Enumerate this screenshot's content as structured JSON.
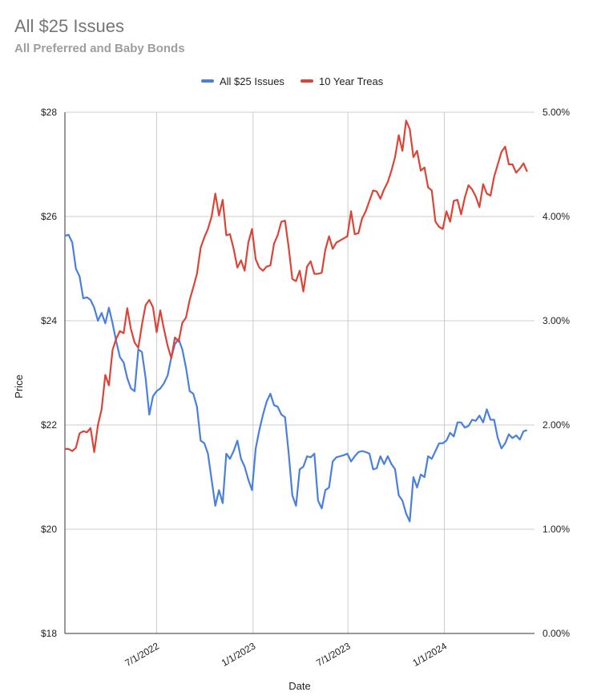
{
  "title": "All $25 Issues",
  "subtitle": "All Preferred and Baby Bonds",
  "chart_data": {
    "type": "line",
    "xlabel": "Date",
    "ylabel": "Price",
    "x_ticks": [
      "7/1/2022",
      "1/1/2023",
      "7/1/2023",
      "1/1/2024"
    ],
    "x_tick_dates": [
      "2022-07-01",
      "2023-01-01",
      "2023-07-01",
      "2024-01-01"
    ],
    "x_range": [
      "2022-01-07",
      "2024-06-21"
    ],
    "y_left": {
      "ticks": [
        "$18",
        "$20",
        "$22",
        "$24",
        "$26",
        "$28"
      ],
      "range": [
        18,
        28
      ]
    },
    "y_right": {
      "ticks": [
        "0.00%",
        "1.00%",
        "2.00%",
        "3.00%",
        "4.00%",
        "5.00%"
      ],
      "range": [
        0,
        5
      ]
    },
    "grid": true,
    "legend_position": "top",
    "series": [
      {
        "name": "All $25 Issues",
        "color": "#4a7fdc",
        "axis": "left",
        "points": [
          [
            "2022-01-07",
            25.63
          ],
          [
            "2022-01-14",
            25.65
          ],
          [
            "2022-01-21",
            25.5
          ],
          [
            "2022-01-28",
            25.0
          ],
          [
            "2022-02-04",
            24.85
          ],
          [
            "2022-02-11",
            24.43
          ],
          [
            "2022-02-18",
            24.45
          ],
          [
            "2022-02-25",
            24.4
          ],
          [
            "2022-03-04",
            24.25
          ],
          [
            "2022-03-11",
            24.0
          ],
          [
            "2022-03-18",
            24.15
          ],
          [
            "2022-03-25",
            23.95
          ],
          [
            "2022-04-01",
            24.25
          ],
          [
            "2022-04-08",
            23.95
          ],
          [
            "2022-04-15",
            23.6
          ],
          [
            "2022-04-22",
            23.3
          ],
          [
            "2022-04-29",
            23.2
          ],
          [
            "2022-05-06",
            22.9
          ],
          [
            "2022-05-13",
            22.7
          ],
          [
            "2022-05-20",
            22.65
          ],
          [
            "2022-05-27",
            23.45
          ],
          [
            "2022-06-03",
            23.4
          ],
          [
            "2022-06-10",
            22.9
          ],
          [
            "2022-06-17",
            22.2
          ],
          [
            "2022-06-24",
            22.55
          ],
          [
            "2022-07-01",
            22.65
          ],
          [
            "2022-07-08",
            22.7
          ],
          [
            "2022-07-15",
            22.8
          ],
          [
            "2022-07-22",
            22.95
          ],
          [
            "2022-07-29",
            23.3
          ],
          [
            "2022-08-05",
            23.55
          ],
          [
            "2022-08-12",
            23.65
          ],
          [
            "2022-08-19",
            23.45
          ],
          [
            "2022-08-26",
            23.1
          ],
          [
            "2022-09-02",
            22.65
          ],
          [
            "2022-09-09",
            22.6
          ],
          [
            "2022-09-16",
            22.35
          ],
          [
            "2022-09-23",
            21.7
          ],
          [
            "2022-09-30",
            21.65
          ],
          [
            "2022-10-07",
            21.45
          ],
          [
            "2022-10-14",
            20.95
          ],
          [
            "2022-10-21",
            20.45
          ],
          [
            "2022-10-28",
            20.75
          ],
          [
            "2022-11-04",
            20.5
          ],
          [
            "2022-11-11",
            21.45
          ],
          [
            "2022-11-18",
            21.35
          ],
          [
            "2022-11-25",
            21.5
          ],
          [
            "2022-12-02",
            21.7
          ],
          [
            "2022-12-09",
            21.35
          ],
          [
            "2022-12-16",
            21.2
          ],
          [
            "2022-12-23",
            20.95
          ],
          [
            "2022-12-30",
            20.75
          ],
          [
            "2023-01-06",
            21.55
          ],
          [
            "2023-01-13",
            21.9
          ],
          [
            "2023-01-20",
            22.2
          ],
          [
            "2023-01-27",
            22.45
          ],
          [
            "2023-02-03",
            22.6
          ],
          [
            "2023-02-10",
            22.38
          ],
          [
            "2023-02-17",
            22.35
          ],
          [
            "2023-02-24",
            22.2
          ],
          [
            "2023-03-03",
            22.15
          ],
          [
            "2023-03-10",
            21.45
          ],
          [
            "2023-03-17",
            20.65
          ],
          [
            "2023-03-24",
            20.45
          ],
          [
            "2023-03-31",
            21.15
          ],
          [
            "2023-04-07",
            21.2
          ],
          [
            "2023-04-14",
            21.4
          ],
          [
            "2023-04-21",
            21.38
          ],
          [
            "2023-04-28",
            21.45
          ],
          [
            "2023-05-05",
            20.55
          ],
          [
            "2023-05-12",
            20.4
          ],
          [
            "2023-05-19",
            20.75
          ],
          [
            "2023-05-26",
            20.8
          ],
          [
            "2023-06-02",
            21.3
          ],
          [
            "2023-06-09",
            21.38
          ],
          [
            "2023-06-16",
            21.4
          ],
          [
            "2023-06-23",
            21.42
          ],
          [
            "2023-06-30",
            21.45
          ],
          [
            "2023-07-07",
            21.3
          ],
          [
            "2023-07-14",
            21.4
          ],
          [
            "2023-07-21",
            21.48
          ],
          [
            "2023-07-28",
            21.5
          ],
          [
            "2023-08-04",
            21.48
          ],
          [
            "2023-08-11",
            21.45
          ],
          [
            "2023-08-18",
            21.15
          ],
          [
            "2023-08-25",
            21.17
          ],
          [
            "2023-09-01",
            21.4
          ],
          [
            "2023-09-08",
            21.25
          ],
          [
            "2023-09-15",
            21.4
          ],
          [
            "2023-09-22",
            21.25
          ],
          [
            "2023-09-29",
            21.15
          ],
          [
            "2023-10-06",
            20.65
          ],
          [
            "2023-10-13",
            20.55
          ],
          [
            "2023-10-20",
            20.3
          ],
          [
            "2023-10-27",
            20.15
          ],
          [
            "2023-11-03",
            21.0
          ],
          [
            "2023-11-10",
            20.8
          ],
          [
            "2023-11-17",
            21.05
          ],
          [
            "2023-11-24",
            21.0
          ],
          [
            "2023-12-01",
            21.4
          ],
          [
            "2023-12-08",
            21.35
          ],
          [
            "2023-12-15",
            21.5
          ],
          [
            "2023-12-22",
            21.65
          ],
          [
            "2023-12-29",
            21.65
          ],
          [
            "2024-01-05",
            21.7
          ],
          [
            "2024-01-12",
            21.85
          ],
          [
            "2024-01-19",
            21.78
          ],
          [
            "2024-01-26",
            22.05
          ],
          [
            "2024-02-02",
            22.05
          ],
          [
            "2024-02-09",
            21.95
          ],
          [
            "2024-02-16",
            21.98
          ],
          [
            "2024-02-23",
            22.1
          ],
          [
            "2024-03-01",
            22.08
          ],
          [
            "2024-03-08",
            22.18
          ],
          [
            "2024-03-15",
            22.05
          ],
          [
            "2024-03-22",
            22.3
          ],
          [
            "2024-03-29",
            22.1
          ],
          [
            "2024-04-05",
            22.1
          ],
          [
            "2024-04-12",
            21.75
          ],
          [
            "2024-04-19",
            21.55
          ],
          [
            "2024-04-26",
            21.65
          ],
          [
            "2024-05-03",
            21.82
          ],
          [
            "2024-05-10",
            21.75
          ],
          [
            "2024-05-17",
            21.8
          ],
          [
            "2024-05-24",
            21.72
          ],
          [
            "2024-05-31",
            21.88
          ],
          [
            "2024-06-07",
            21.9
          ]
        ]
      },
      {
        "name": "10 Year Treas",
        "color": "#db4437",
        "axis": "right",
        "points": [
          [
            "2022-01-07",
            1.77
          ],
          [
            "2022-01-14",
            1.77
          ],
          [
            "2022-01-21",
            1.75
          ],
          [
            "2022-01-28",
            1.78
          ],
          [
            "2022-02-04",
            1.92
          ],
          [
            "2022-02-11",
            1.94
          ],
          [
            "2022-02-18",
            1.93
          ],
          [
            "2022-02-25",
            1.97
          ],
          [
            "2022-03-04",
            1.74
          ],
          [
            "2022-03-11",
            2.0
          ],
          [
            "2022-03-18",
            2.15
          ],
          [
            "2022-03-25",
            2.48
          ],
          [
            "2022-04-01",
            2.38
          ],
          [
            "2022-04-08",
            2.72
          ],
          [
            "2022-04-15",
            2.83
          ],
          [
            "2022-04-22",
            2.9
          ],
          [
            "2022-04-29",
            2.88
          ],
          [
            "2022-05-06",
            3.12
          ],
          [
            "2022-05-13",
            2.92
          ],
          [
            "2022-05-20",
            2.79
          ],
          [
            "2022-05-27",
            2.74
          ],
          [
            "2022-06-03",
            2.96
          ],
          [
            "2022-06-10",
            3.15
          ],
          [
            "2022-06-17",
            3.2
          ],
          [
            "2022-06-24",
            3.13
          ],
          [
            "2022-07-01",
            2.89
          ],
          [
            "2022-07-08",
            3.1
          ],
          [
            "2022-07-15",
            2.92
          ],
          [
            "2022-07-22",
            2.76
          ],
          [
            "2022-07-29",
            2.64
          ],
          [
            "2022-08-05",
            2.84
          ],
          [
            "2022-08-12",
            2.8
          ],
          [
            "2022-08-19",
            2.98
          ],
          [
            "2022-08-26",
            3.03
          ],
          [
            "2022-09-02",
            3.2
          ],
          [
            "2022-09-09",
            3.32
          ],
          [
            "2022-09-16",
            3.45
          ],
          [
            "2022-09-23",
            3.7
          ],
          [
            "2022-09-30",
            3.8
          ],
          [
            "2022-10-07",
            3.88
          ],
          [
            "2022-10-14",
            4.0
          ],
          [
            "2022-10-21",
            4.22
          ],
          [
            "2022-10-28",
            4.01
          ],
          [
            "2022-11-04",
            4.16
          ],
          [
            "2022-11-11",
            3.82
          ],
          [
            "2022-11-18",
            3.83
          ],
          [
            "2022-11-25",
            3.69
          ],
          [
            "2022-12-02",
            3.51
          ],
          [
            "2022-12-09",
            3.58
          ],
          [
            "2022-12-16",
            3.48
          ],
          [
            "2022-12-23",
            3.75
          ],
          [
            "2022-12-30",
            3.88
          ],
          [
            "2023-01-06",
            3.59
          ],
          [
            "2023-01-13",
            3.51
          ],
          [
            "2023-01-20",
            3.48
          ],
          [
            "2023-01-27",
            3.52
          ],
          [
            "2023-02-03",
            3.53
          ],
          [
            "2023-02-10",
            3.74
          ],
          [
            "2023-02-17",
            3.82
          ],
          [
            "2023-02-24",
            3.95
          ],
          [
            "2023-03-03",
            3.96
          ],
          [
            "2023-03-10",
            3.7
          ],
          [
            "2023-03-17",
            3.4
          ],
          [
            "2023-03-24",
            3.38
          ],
          [
            "2023-03-31",
            3.48
          ],
          [
            "2023-04-07",
            3.28
          ],
          [
            "2023-04-14",
            3.52
          ],
          [
            "2023-04-21",
            3.57
          ],
          [
            "2023-04-28",
            3.45
          ],
          [
            "2023-05-05",
            3.45
          ],
          [
            "2023-05-12",
            3.46
          ],
          [
            "2023-05-19",
            3.68
          ],
          [
            "2023-05-26",
            3.81
          ],
          [
            "2023-06-02",
            3.69
          ],
          [
            "2023-06-09",
            3.75
          ],
          [
            "2023-06-16",
            3.77
          ],
          [
            "2023-06-23",
            3.79
          ],
          [
            "2023-06-30",
            3.81
          ],
          [
            "2023-07-07",
            4.05
          ],
          [
            "2023-07-14",
            3.83
          ],
          [
            "2023-07-21",
            3.84
          ],
          [
            "2023-07-28",
            3.98
          ],
          [
            "2023-08-04",
            4.05
          ],
          [
            "2023-08-11",
            4.15
          ],
          [
            "2023-08-18",
            4.25
          ],
          [
            "2023-08-25",
            4.24
          ],
          [
            "2023-09-01",
            4.17
          ],
          [
            "2023-09-08",
            4.26
          ],
          [
            "2023-09-15",
            4.33
          ],
          [
            "2023-09-22",
            4.44
          ],
          [
            "2023-09-29",
            4.57
          ],
          [
            "2023-10-06",
            4.78
          ],
          [
            "2023-10-13",
            4.63
          ],
          [
            "2023-10-20",
            4.92
          ],
          [
            "2023-10-27",
            4.84
          ],
          [
            "2023-11-03",
            4.57
          ],
          [
            "2023-11-10",
            4.63
          ],
          [
            "2023-11-17",
            4.44
          ],
          [
            "2023-11-24",
            4.47
          ],
          [
            "2023-12-01",
            4.28
          ],
          [
            "2023-12-08",
            4.25
          ],
          [
            "2023-12-15",
            3.95
          ],
          [
            "2023-12-22",
            3.9
          ],
          [
            "2023-12-29",
            3.88
          ],
          [
            "2024-01-05",
            4.05
          ],
          [
            "2024-01-12",
            3.95
          ],
          [
            "2024-01-19",
            4.15
          ],
          [
            "2024-01-26",
            4.16
          ],
          [
            "2024-02-02",
            4.02
          ],
          [
            "2024-02-09",
            4.18
          ],
          [
            "2024-02-16",
            4.3
          ],
          [
            "2024-02-23",
            4.26
          ],
          [
            "2024-03-01",
            4.19
          ],
          [
            "2024-03-08",
            4.09
          ],
          [
            "2024-03-15",
            4.31
          ],
          [
            "2024-03-22",
            4.22
          ],
          [
            "2024-03-29",
            4.2
          ],
          [
            "2024-04-05",
            4.38
          ],
          [
            "2024-04-12",
            4.5
          ],
          [
            "2024-04-19",
            4.62
          ],
          [
            "2024-04-26",
            4.67
          ],
          [
            "2024-05-03",
            4.5
          ],
          [
            "2024-05-10",
            4.5
          ],
          [
            "2024-05-17",
            4.42
          ],
          [
            "2024-05-24",
            4.46
          ],
          [
            "2024-05-31",
            4.51
          ],
          [
            "2024-06-07",
            4.43
          ]
        ]
      }
    ]
  }
}
